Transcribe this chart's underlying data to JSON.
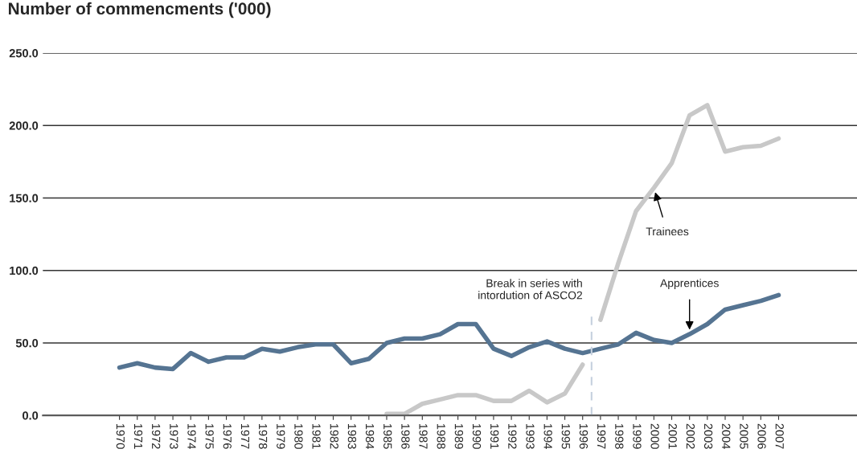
{
  "chart_data": {
    "type": "line",
    "title": "Number of commencments ('000)",
    "x": [
      1970,
      1971,
      1972,
      1973,
      1974,
      1975,
      1976,
      1977,
      1978,
      1979,
      1980,
      1981,
      1982,
      1983,
      1984,
      1985,
      1986,
      1987,
      1988,
      1989,
      1990,
      1991,
      1992,
      1993,
      1994,
      1995,
      1996,
      1997,
      1998,
      1999,
      2000,
      2001,
      2002,
      2003,
      2004,
      2005,
      2006,
      2007
    ],
    "series": [
      {
        "color": "#557492",
        "values": [
          33,
          36,
          33,
          32,
          43,
          37,
          40,
          40,
          46,
          44,
          47,
          49,
          49,
          36,
          39,
          50,
          53,
          53,
          56,
          63,
          63,
          46,
          41,
          47,
          51,
          46,
          43,
          46,
          49,
          57,
          52,
          50,
          56,
          63,
          73,
          76,
          79,
          83
        ]
      },
      {
        "color": "#c8c8c8",
        "x": [
          1985,
          1986,
          1987,
          1988,
          1989,
          1990,
          1991,
          1992,
          1993,
          1994,
          1995,
          1996
        ],
        "values": [
          1,
          1,
          8,
          11,
          14,
          14,
          10,
          10,
          17,
          9,
          15,
          35
        ]
      },
      {
        "color": "#c8c8c8",
        "x": [
          1997,
          1998,
          1999,
          2000,
          2001,
          2002,
          2003,
          2004,
          2005,
          2006,
          2007
        ],
        "values": [
          66,
          105,
          141,
          157,
          174,
          207,
          214,
          182,
          185,
          186,
          191
        ]
      }
    ],
    "xlim": [
      1965.7,
      2011.4
    ],
    "xticks": [
      1970,
      1971,
      1972,
      1973,
      1974,
      1975,
      1976,
      1977,
      1978,
      1979,
      1980,
      1981,
      1982,
      1983,
      1984,
      1985,
      1986,
      1987,
      1988,
      1989,
      1990,
      1991,
      1992,
      1993,
      1994,
      1995,
      1996,
      1997,
      1998,
      1999,
      2000,
      2001,
      2002,
      2003,
      2004,
      2005,
      2006,
      2007
    ],
    "ylim": [
      0,
      250
    ],
    "yticks": [
      {
        "value": 0,
        "label": "0.0"
      },
      {
        "value": 50,
        "label": "50.0"
      },
      {
        "value": 100,
        "label": "100.0"
      },
      {
        "value": 150,
        "label": "150.0"
      },
      {
        "value": 200,
        "label": "200.0"
      },
      {
        "value": 250,
        "label": "250.0"
      }
    ],
    "grid": "y",
    "ref_lines": [
      {
        "axis": "x",
        "value": 1996.5,
        "label": "Break in series with\nintordution of ASCO2",
        "color": "#c5d0de",
        "line_style": "dashed"
      }
    ],
    "annotations": [
      {
        "text": "Trainees",
        "x": 2000,
        "y": 157
      },
      {
        "text": "Apprentices",
        "x": 2002,
        "y": 56
      }
    ]
  }
}
